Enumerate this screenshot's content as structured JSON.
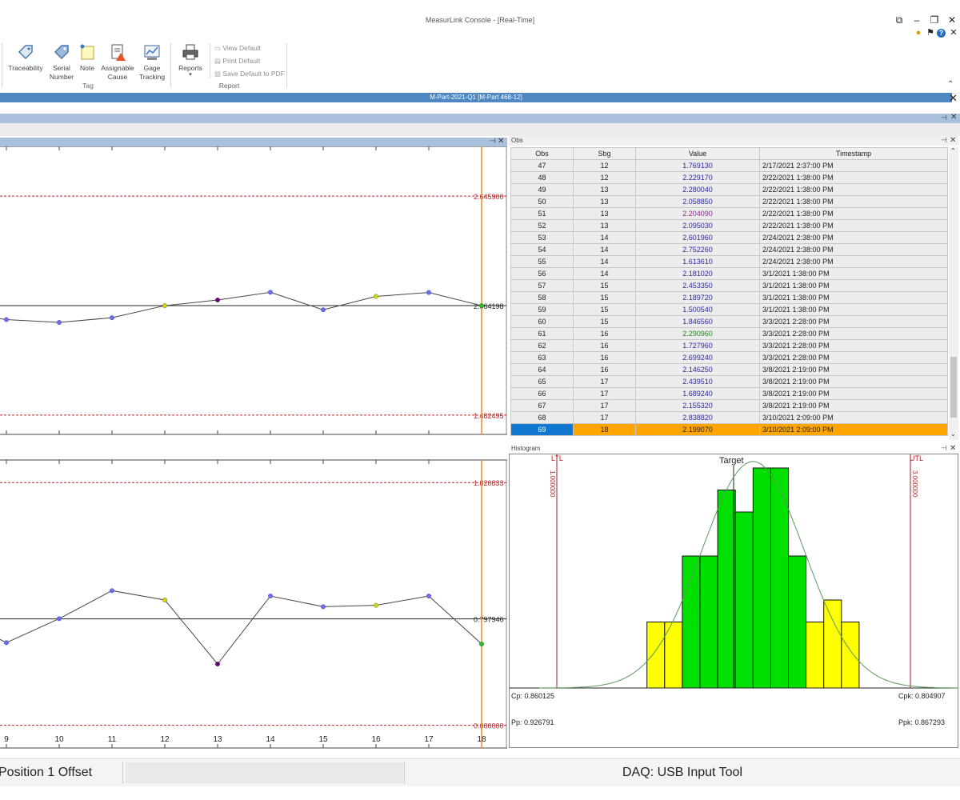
{
  "window": {
    "title": "MeasurLink Console - [Real-Time]"
  },
  "ribbon": {
    "tag_group": {
      "label": "Tag",
      "buttons": [
        {
          "label": "Traceability",
          "icon": "tag-icon"
        },
        {
          "label": "Serial Number",
          "icon": "serial-tag-icon"
        },
        {
          "label": "Note",
          "icon": "note-icon"
        },
        {
          "label": "Assignable Cause",
          "icon": "assignable-cause-icon"
        },
        {
          "label": "Gage Tracking",
          "icon": "gage-tracking-icon"
        }
      ]
    },
    "report_group": {
      "label": "Report",
      "reports_button": "Reports",
      "small_buttons": [
        "View Default",
        "Print Default",
        "Save Default to PDF"
      ]
    }
  },
  "document_tab": "M-Part-2021-Q1 [M-Part 468-12]",
  "charts": {
    "x_labels": [
      "9",
      "10",
      "11",
      "12",
      "13",
      "14",
      "15",
      "16",
      "17",
      "18"
    ],
    "top": {
      "ucl_label": "2.645900",
      "cl_label": "2.064198",
      "lcl_label": "1.482495"
    },
    "bottom": {
      "ucl_label": "1.820833",
      "cl_label": "0.797946",
      "lcl_label": "0.000000"
    }
  },
  "chart_data": [
    {
      "type": "line",
      "title": "",
      "x": [
        8.5,
        9,
        10,
        11,
        12,
        13,
        14,
        15,
        16,
        17,
        18
      ],
      "values": [
        2.01,
        1.99,
        1.975,
        2.0,
        2.064,
        2.094,
        2.135,
        2.042,
        2.113,
        2.134,
        2.064
      ],
      "point_colors": [
        "",
        "#6a6aff",
        "#6a6aff",
        "#6a6aff",
        "#d4d400",
        "#6a0080",
        "#6a6aff",
        "#6a6aff",
        "#c8e000",
        "#6a6aff",
        "#20c020"
      ],
      "ucl": 2.6459,
      "cl": 2.064198,
      "lcl": 1.482495,
      "ylim": [
        1.38,
        2.91
      ]
    },
    {
      "type": "line",
      "title": "",
      "x": [
        8.5,
        9,
        10,
        11,
        12,
        13,
        14,
        15,
        16,
        17,
        18
      ],
      "values": [
        0.72,
        0.62,
        0.8,
        1.01,
        0.94,
        0.46,
        0.97,
        0.89,
        0.9,
        0.97,
        0.61
      ],
      "point_colors": [
        "",
        "#6a6aff",
        "#6a6aff",
        "#6a6aff",
        "#d4d400",
        "#6a0080",
        "#6a6aff",
        "#6a6aff",
        "#c8e000",
        "#6a6aff",
        "#20c020"
      ],
      "ucl": 1.820833,
      "cl": 0.797946,
      "lcl": 0.0,
      "ylim": [
        -0.17,
        1.99
      ]
    },
    {
      "type": "bar",
      "title": "",
      "bins": [
        1.51,
        1.61,
        1.71,
        1.81,
        1.91,
        2.01,
        2.11,
        2.21,
        2.31,
        2.41,
        2.51,
        2.61,
        2.71
      ],
      "counts": [
        3,
        3,
        6,
        6,
        9,
        8,
        10,
        10,
        6,
        3,
        4,
        3
      ],
      "bar_colors": [
        "#ffff00",
        "#ffff00",
        "#00e000",
        "#00e000",
        "#00e000",
        "#00e000",
        "#00e000",
        "#00e000",
        "#00e000",
        "#ffff00",
        "#ffff00",
        "#ffff00"
      ],
      "lsl": 1.0,
      "usl": 3.0
    }
  ],
  "obs": {
    "panel_title": "Obs",
    "columns": [
      "Obs",
      "Sbg",
      "Value",
      "Timestamp"
    ],
    "rows": [
      {
        "obs": "47",
        "sbg": "12",
        "value": "1.769130",
        "ts": "2/17/2021 2:37:00 PM",
        "color": "#2a2aa0"
      },
      {
        "obs": "48",
        "sbg": "12",
        "value": "2.229170",
        "ts": "2/22/2021 1:38:00 PM",
        "color": "#2a2aa0"
      },
      {
        "obs": "49",
        "sbg": "13",
        "value": "2.280040",
        "ts": "2/22/2021 1:38:00 PM",
        "color": "#2a2aa0"
      },
      {
        "obs": "50",
        "sbg": "13",
        "value": "2.058850",
        "ts": "2/22/2021 1:38:00 PM",
        "color": "#2a2aa0"
      },
      {
        "obs": "51",
        "sbg": "13",
        "value": "2.204090",
        "ts": "2/22/2021 1:38:00 PM",
        "color": "#8a2a8a"
      },
      {
        "obs": "52",
        "sbg": "13",
        "value": "2.095030",
        "ts": "2/22/2021 1:38:00 PM",
        "color": "#2a2aa0"
      },
      {
        "obs": "53",
        "sbg": "14",
        "value": "2.601960",
        "ts": "2/24/2021 2:38:00 PM",
        "color": "#2a2aa0"
      },
      {
        "obs": "54",
        "sbg": "14",
        "value": "2.752260",
        "ts": "2/24/2021 2:38:00 PM",
        "color": "#2a2aa0"
      },
      {
        "obs": "55",
        "sbg": "14",
        "value": "1.613610",
        "ts": "2/24/2021 2:38:00 PM",
        "color": "#2a2aa0"
      },
      {
        "obs": "56",
        "sbg": "14",
        "value": "2.181020",
        "ts": "3/1/2021 1:38:00 PM",
        "color": "#2a2aa0"
      },
      {
        "obs": "57",
        "sbg": "15",
        "value": "2.453350",
        "ts": "3/1/2021 1:38:00 PM",
        "color": "#2a2aa0"
      },
      {
        "obs": "58",
        "sbg": "15",
        "value": "2.189720",
        "ts": "3/1/2021 1:38:00 PM",
        "color": "#2a2aa0"
      },
      {
        "obs": "59",
        "sbg": "15",
        "value": "1.500540",
        "ts": "3/1/2021 1:38:00 PM",
        "color": "#2a2aa0"
      },
      {
        "obs": "60",
        "sbg": "15",
        "value": "1.846560",
        "ts": "3/3/2021 2:28:00 PM",
        "color": "#2a2aa0"
      },
      {
        "obs": "61",
        "sbg": "16",
        "value": "2.290960",
        "ts": "3/3/2021 2:28:00 PM",
        "color": "#1a8a1a"
      },
      {
        "obs": "62",
        "sbg": "16",
        "value": "1.727960",
        "ts": "3/3/2021 2:28:00 PM",
        "color": "#2a2aa0"
      },
      {
        "obs": "63",
        "sbg": "16",
        "value": "2.699240",
        "ts": "3/3/2021 2:28:00 PM",
        "color": "#2a2aa0"
      },
      {
        "obs": "64",
        "sbg": "16",
        "value": "2.146250",
        "ts": "3/8/2021 2:19:00 PM",
        "color": "#2a2aa0"
      },
      {
        "obs": "65",
        "sbg": "17",
        "value": "2.439510",
        "ts": "3/8/2021 2:19:00 PM",
        "color": "#2a2aa0"
      },
      {
        "obs": "66",
        "sbg": "17",
        "value": "1.689240",
        "ts": "3/8/2021 2:19:00 PM",
        "color": "#2a2aa0"
      },
      {
        "obs": "67",
        "sbg": "17",
        "value": "2.155320",
        "ts": "3/8/2021 2:19:00 PM",
        "color": "#2a2aa0"
      },
      {
        "obs": "68",
        "sbg": "17",
        "value": "2.838820",
        "ts": "3/10/2021 2:09:00 PM",
        "color": "#2a2aa0"
      },
      {
        "obs": "69",
        "sbg": "18",
        "value": "2.199070",
        "ts": "3/10/2021 2:09:00 PM",
        "color": "#222222",
        "selected": true
      }
    ]
  },
  "histogram": {
    "panel_title": "Histogram",
    "ltl_label": "LTL",
    "utl_label": "UTL",
    "ltl_value": "1.000000",
    "utl_value": "3.000000",
    "target_label": "Target",
    "cp": "Cp: 0.860125",
    "cpk": "Cpk: 0.804907",
    "pp": "Pp: 0.926791",
    "ppk": "Ppk: 0.867293"
  },
  "status": {
    "left": "Position 1 Offset",
    "right": "DAQ: USB Input Tool"
  }
}
